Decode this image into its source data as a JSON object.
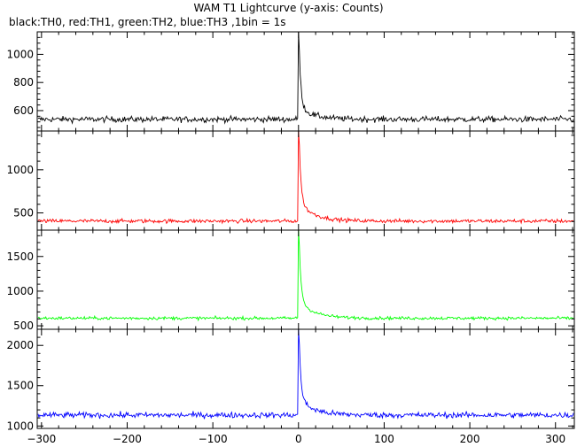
{
  "title": "WAM T1 Lightcurve (y-axis: Counts)",
  "subtitle": "black:TH0, red:TH1, green:TH2, blue:TH3 ,1bin = 1s",
  "chart_data": {
    "type": "line",
    "title": "WAM T1 Lightcurve (y-axis: Counts)",
    "subtitle": "black:TH0, red:TH1, green:TH2, blue:TH3 ,1bin = 1s",
    "xlim": [
      -305,
      322
    ],
    "x_step": 1,
    "x_ticks": [
      -300,
      -200,
      -100,
      0,
      100,
      200,
      300
    ],
    "x_tick_labels": [
      "−300",
      "−200",
      "−100",
      "0",
      "100",
      "200",
      "300"
    ],
    "grid": false,
    "panels": [
      {
        "name": "TH0",
        "color": "#000000",
        "ylim": [
          455,
          1160
        ],
        "y_ticks": [
          600,
          800,
          1000
        ],
        "y_tick_labels": [
          "600",
          "800",
          "1000"
        ],
        "baseline": 538,
        "noise": 22,
        "peak": 1150,
        "decay_tail": 85,
        "peak_x": 0
      },
      {
        "name": "TH1",
        "color": "#ff0000",
        "ylim": [
          300,
          1450
        ],
        "y_ticks": [
          500,
          1000
        ],
        "y_tick_labels": [
          "500",
          "1000"
        ],
        "baseline": 405,
        "noise": 24,
        "peak": 1440,
        "decay_tail": 220,
        "peak_x": 0
      },
      {
        "name": "TH2",
        "color": "#00ff00",
        "ylim": [
          450,
          1880
        ],
        "y_ticks": [
          500,
          1000,
          1500
        ],
        "y_tick_labels": [
          "500",
          "1000",
          "1500"
        ],
        "baseline": 610,
        "noise": 24,
        "peak": 1860,
        "decay_tail": 250,
        "peak_x": 0
      },
      {
        "name": "TH3",
        "color": "#0000ff",
        "ylim": [
          970,
          2200
        ],
        "y_ticks": [
          1000,
          1500,
          2000
        ],
        "y_tick_labels": [
          "1000",
          "1500",
          "2000"
        ],
        "baseline": 1135,
        "noise": 38,
        "peak": 2190,
        "decay_tail": 200,
        "peak_x": 0
      }
    ]
  }
}
